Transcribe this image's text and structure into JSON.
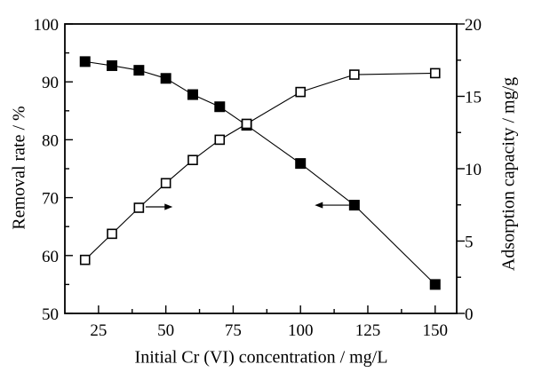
{
  "chart_data": {
    "type": "line",
    "title": "",
    "xlabel": "Initial Cr (VI) concentration / mg/L",
    "ylabel_left": "Removal rate / %",
    "ylabel_right": "Adsorption capacity / mg/g",
    "legend": "none",
    "grid": false,
    "x": [
      20,
      30,
      40,
      50,
      60,
      70,
      80,
      100,
      120,
      150
    ],
    "series": [
      {
        "name": "Removal rate",
        "axis": "left",
        "marker": "filled-square",
        "values": [
          93.5,
          92.8,
          92.0,
          90.6,
          87.8,
          85.7,
          82.5,
          75.9,
          68.7,
          55.0
        ]
      },
      {
        "name": "Adsorption capacity",
        "axis": "right",
        "marker": "open-square",
        "values": [
          3.7,
          5.5,
          7.3,
          9.0,
          10.6,
          12.0,
          13.1,
          15.3,
          16.5,
          16.6
        ]
      }
    ],
    "xlim": [
      12.5,
      158
    ],
    "ylim_left": [
      50,
      100
    ],
    "ylim_right": [
      0,
      20
    ],
    "x_major_ticks": [
      25,
      50,
      75,
      100,
      125,
      150
    ],
    "x_minor_ticks": [
      37.5,
      62.5,
      87.5,
      112.5,
      137.5
    ],
    "y_left_major_ticks": [
      50,
      60,
      70,
      80,
      90,
      100
    ],
    "y_left_minor_ticks": [
      55,
      65,
      75,
      85,
      95
    ],
    "y_right_major_ticks": [
      0,
      5,
      10,
      15,
      20
    ],
    "y_right_minor_ticks": [
      2.5,
      7.5,
      12.5,
      17.5
    ],
    "annotations": [
      {
        "type": "arrow",
        "points_to": "right-axis",
        "x_tail": 42.5,
        "x_tip": 52.5,
        "y_on_left_scale": 68.4
      },
      {
        "type": "arrow",
        "points_to": "left-axis",
        "x_tail": 118.0,
        "x_tip": 105.3,
        "y_on_left_scale": 68.7
      }
    ],
    "colors": {
      "foreground": "#000000",
      "background": "#ffffff"
    }
  }
}
